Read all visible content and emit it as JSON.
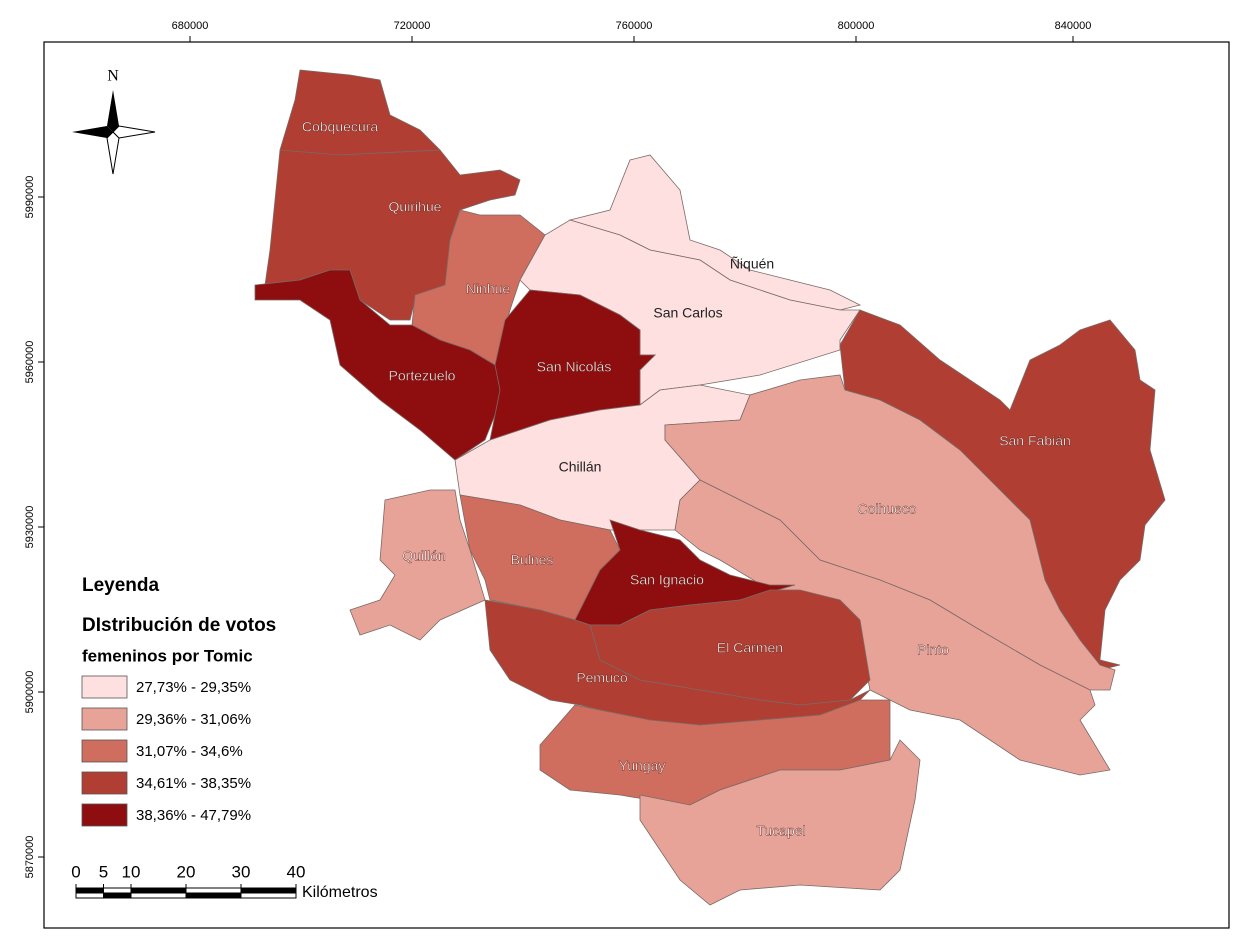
{
  "frame": {
    "xticks": [
      680000,
      720000,
      760000,
      800000,
      840000
    ],
    "yticks": [
      5990000,
      5960000,
      5930000,
      5900000,
      5870000
    ]
  },
  "north_arrow": "N",
  "regions": [
    {
      "name": "Cobquecura",
      "color": "#b03e33"
    },
    {
      "name": "Quirihue",
      "color": "#b03e33"
    },
    {
      "name": "Ninhue",
      "color": "#cf6d5e"
    },
    {
      "name": "Ñiquén",
      "color": "#fde0df"
    },
    {
      "name": "San Carlos",
      "color": "#fde0df"
    },
    {
      "name": "Portezuelo",
      "color": "#8e0e10"
    },
    {
      "name": "San Nicolás",
      "color": "#8e0e10"
    },
    {
      "name": "Chillán",
      "color": "#fde0df"
    },
    {
      "name": "San Fabián",
      "color": "#b03e33"
    },
    {
      "name": "Coihueco",
      "color": "#e8a399"
    },
    {
      "name": "Pinto",
      "color": "#e8a399"
    },
    {
      "name": "Quillón",
      "color": "#e8a399"
    },
    {
      "name": "Bulnes",
      "color": "#cf6d5e"
    },
    {
      "name": "San Ignacio",
      "color": "#8e0e10"
    },
    {
      "name": "El Carmen",
      "color": "#b03e33"
    },
    {
      "name": "Pemuco",
      "color": "#b03e33"
    },
    {
      "name": "Yungay",
      "color": "#cf6d5e"
    },
    {
      "name": "Tucapel",
      "color": "#e8a399"
    }
  ],
  "legend": {
    "title": "Leyenda",
    "subtitle_1": "DIstribución de votos",
    "subtitle_2": "femeninos por Tomic",
    "classes": [
      {
        "label": "27,73% - 29,35%",
        "color": "#fde0df"
      },
      {
        "label": "29,36% - 31,06%",
        "color": "#e8a399"
      },
      {
        "label": "31,07% - 34,6%",
        "color": "#cf6d5e"
      },
      {
        "label": "34,61% - 38,35%",
        "color": "#b03e33"
      },
      {
        "label": "38,36% - 47,79%",
        "color": "#8e0e10"
      }
    ]
  },
  "scale_bar": {
    "ticks": [
      0,
      5,
      10,
      20,
      30,
      40
    ],
    "unit": "Kilómetros"
  }
}
